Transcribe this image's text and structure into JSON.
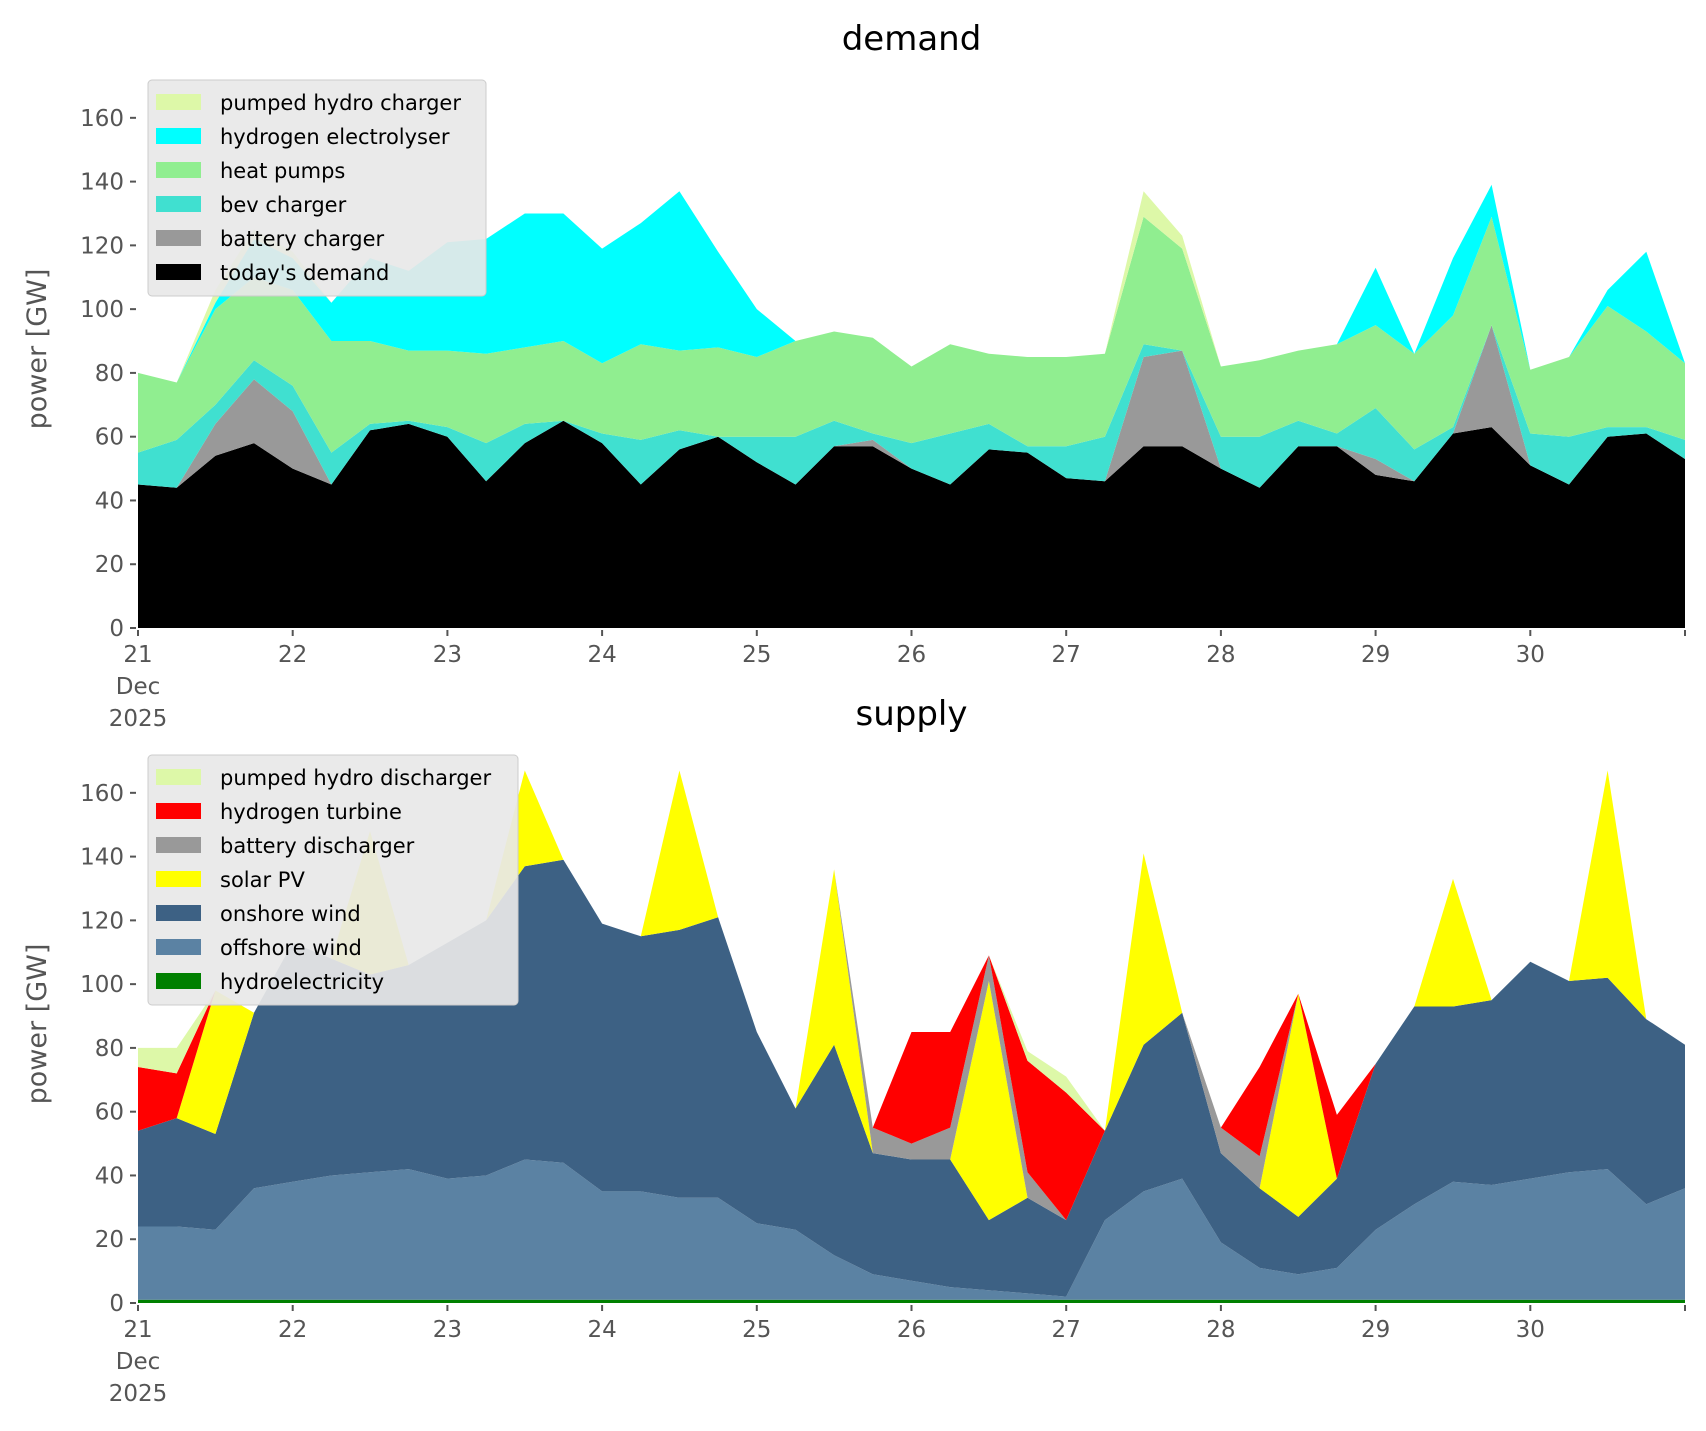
{
  "chart_data": [
    {
      "type": "area",
      "stacked": true,
      "title": "demand",
      "xlabel": "",
      "ylabel": "power [GW]",
      "ylim": [
        0,
        175
      ],
      "yticks": [
        0,
        20,
        40,
        60,
        80,
        100,
        120,
        140,
        160
      ],
      "xlim_days": [
        0,
        10
      ],
      "x_start": "2025-12-21",
      "x_step_hours": 6,
      "xticks": [
        {
          "day": 0,
          "lines": [
            "21",
            "Dec",
            "2025"
          ]
        },
        {
          "day": 1,
          "lines": [
            "22"
          ]
        },
        {
          "day": 2,
          "lines": [
            "23"
          ]
        },
        {
          "day": 3,
          "lines": [
            "24"
          ]
        },
        {
          "day": 4,
          "lines": [
            "25"
          ]
        },
        {
          "day": 5,
          "lines": [
            "26"
          ]
        },
        {
          "day": 6,
          "lines": [
            "27"
          ]
        },
        {
          "day": 7,
          "lines": [
            "28"
          ]
        },
        {
          "day": 8,
          "lines": [
            "29"
          ]
        },
        {
          "day": 9,
          "lines": [
            "30"
          ]
        }
      ],
      "grid": false,
      "legend_position": "top-left",
      "legend_order": [
        "pumped hydro charger",
        "hydrogen electrolyser",
        "heat pumps",
        "bev charger",
        "battery charger",
        "today's demand"
      ],
      "series": [
        {
          "name": "today's demand",
          "color": "#000000",
          "values": [
            45,
            44,
            54,
            58,
            50,
            45,
            62,
            64,
            60,
            46,
            58,
            65,
            58,
            45,
            56,
            60,
            52,
            45,
            57,
            57,
            50,
            45,
            56,
            55,
            47,
            46,
            57,
            57,
            50,
            44,
            57,
            57,
            48,
            46,
            61,
            63,
            51,
            45,
            60,
            61,
            53
          ]
        },
        {
          "name": "battery charger",
          "color": "#999999",
          "values": [
            0,
            0,
            10,
            20,
            18,
            0,
            0,
            0,
            0,
            0,
            0,
            0,
            0,
            0,
            0,
            0,
            0,
            0,
            0,
            2,
            0,
            0,
            0,
            0,
            0,
            0,
            28,
            30,
            0,
            0,
            0,
            0,
            5,
            0,
            0,
            32,
            0,
            0,
            0,
            0,
            0
          ]
        },
        {
          "name": "bev charger",
          "color": "#40e0d0",
          "values": [
            10,
            15,
            6,
            6,
            8,
            10,
            2,
            1,
            3,
            12,
            6,
            0,
            3,
            14,
            6,
            0,
            8,
            15,
            8,
            2,
            8,
            16,
            8,
            2,
            10,
            14,
            4,
            0,
            10,
            16,
            8,
            4,
            16,
            10,
            2,
            0,
            10,
            15,
            3,
            2,
            6
          ]
        },
        {
          "name": "heat pumps",
          "color": "#90ee90",
          "values": [
            25,
            18,
            30,
            26,
            30,
            35,
            26,
            22,
            24,
            28,
            24,
            25,
            22,
            30,
            25,
            28,
            25,
            30,
            28,
            30,
            24,
            28,
            22,
            28,
            28,
            26,
            40,
            32,
            22,
            24,
            22,
            28,
            26,
            30,
            35,
            34,
            20,
            25,
            38,
            30,
            24
          ]
        },
        {
          "name": "hydrogen electrolyser",
          "color": "#00ffff",
          "values": [
            0,
            0,
            2,
            12,
            10,
            12,
            26,
            25,
            34,
            36,
            42,
            40,
            36,
            38,
            50,
            30,
            15,
            0,
            0,
            0,
            0,
            0,
            0,
            0,
            0,
            0,
            0,
            0,
            0,
            0,
            0,
            0,
            18,
            0,
            18,
            10,
            0,
            0,
            5,
            25,
            0
          ]
        },
        {
          "name": "pumped hydro charger",
          "color": "#ddf8a8",
          "values": [
            0,
            0,
            4,
            3,
            2,
            0,
            0,
            0,
            0,
            0,
            0,
            0,
            0,
            0,
            0,
            0,
            0,
            0,
            0,
            0,
            0,
            0,
            0,
            0,
            0,
            0,
            8,
            4,
            0,
            0,
            0,
            0,
            0,
            0,
            0,
            0,
            0,
            0,
            0,
            0,
            0
          ]
        }
      ]
    },
    {
      "type": "area",
      "stacked": true,
      "title": "supply",
      "xlabel": "",
      "ylabel": "power [GW]",
      "ylim": [
        0,
        175
      ],
      "yticks": [
        0,
        20,
        40,
        60,
        80,
        100,
        120,
        140,
        160
      ],
      "xlim_days": [
        0,
        10
      ],
      "x_start": "2025-12-21",
      "x_step_hours": 6,
      "xticks": [
        {
          "day": 0,
          "lines": [
            "21",
            "Dec",
            "2025"
          ]
        },
        {
          "day": 1,
          "lines": [
            "22"
          ]
        },
        {
          "day": 2,
          "lines": [
            "23"
          ]
        },
        {
          "day": 3,
          "lines": [
            "24"
          ]
        },
        {
          "day": 4,
          "lines": [
            "25"
          ]
        },
        {
          "day": 5,
          "lines": [
            "26"
          ]
        },
        {
          "day": 6,
          "lines": [
            "27"
          ]
        },
        {
          "day": 7,
          "lines": [
            "28"
          ]
        },
        {
          "day": 8,
          "lines": [
            "29"
          ]
        },
        {
          "day": 9,
          "lines": [
            "30"
          ]
        }
      ],
      "grid": false,
      "legend_position": "top-left",
      "legend_order": [
        "pumped hydro discharger",
        "hydrogen turbine",
        "battery discharger",
        "solar PV",
        "onshore wind",
        "offshore wind",
        "hydroelectricity"
      ],
      "series": [
        {
          "name": "hydroelectricity",
          "color": "#008000",
          "values": [
            1,
            1,
            1,
            1,
            1,
            1,
            1,
            1,
            1,
            1,
            1,
            1,
            1,
            1,
            1,
            1,
            1,
            1,
            1,
            1,
            1,
            1,
            1,
            1,
            1,
            1,
            1,
            1,
            1,
            1,
            1,
            1,
            1,
            1,
            1,
            1,
            1,
            1,
            1,
            1,
            1
          ]
        },
        {
          "name": "offshore wind",
          "color": "#5b82a3",
          "values": [
            23,
            23,
            22,
            35,
            37,
            39,
            40,
            41,
            38,
            39,
            44,
            43,
            34,
            34,
            32,
            32,
            24,
            22,
            14,
            8,
            6,
            4,
            3,
            2,
            1,
            25,
            34,
            38,
            18,
            10,
            8,
            10,
            22,
            30,
            37,
            36,
            38,
            40,
            41,
            30,
            35
          ]
        },
        {
          "name": "onshore wind",
          "color": "#3d6184",
          "values": [
            30,
            34,
            30,
            55,
            75,
            68,
            62,
            64,
            74,
            80,
            92,
            95,
            84,
            80,
            84,
            88,
            60,
            38,
            66,
            38,
            38,
            40,
            22,
            30,
            24,
            28,
            46,
            52,
            28,
            25,
            18,
            28,
            52,
            62,
            55,
            58,
            68,
            60,
            60,
            58,
            45
          ]
        },
        {
          "name": "solar PV",
          "color": "#ffff00",
          "values": [
            0,
            0,
            45,
            0,
            0,
            0,
            45,
            0,
            0,
            0,
            30,
            0,
            0,
            0,
            50,
            0,
            0,
            0,
            55,
            0,
            0,
            0,
            75,
            0,
            0,
            0,
            60,
            0,
            0,
            0,
            70,
            0,
            0,
            0,
            40,
            0,
            0,
            0,
            65,
            0,
            0
          ]
        },
        {
          "name": "battery discharger",
          "color": "#999999",
          "values": [
            0,
            0,
            0,
            0,
            0,
            0,
            0,
            0,
            0,
            0,
            0,
            0,
            0,
            0,
            0,
            0,
            0,
            0,
            0,
            8,
            5,
            10,
            8,
            8,
            0,
            0,
            0,
            0,
            8,
            10,
            0,
            0,
            0,
            0,
            0,
            0,
            0,
            0,
            0,
            0,
            0
          ]
        },
        {
          "name": "hydrogen turbine",
          "color": "#ff0000",
          "values": [
            20,
            14,
            0,
            0,
            0,
            0,
            0,
            0,
            0,
            0,
            0,
            0,
            0,
            0,
            0,
            0,
            0,
            0,
            0,
            0,
            35,
            30,
            0,
            35,
            40,
            0,
            0,
            0,
            0,
            28,
            0,
            20,
            0,
            0,
            0,
            0,
            0,
            0,
            0,
            0,
            0
          ]
        },
        {
          "name": "pumped hydro discharger",
          "color": "#ddf8a8",
          "values": [
            6,
            8,
            0,
            0,
            0,
            0,
            0,
            0,
            0,
            0,
            0,
            0,
            0,
            0,
            0,
            0,
            0,
            0,
            0,
            0,
            0,
            0,
            0,
            3,
            5,
            0,
            0,
            0,
            0,
            0,
            0,
            0,
            0,
            0,
            0,
            0,
            0,
            0,
            0,
            0,
            0
          ]
        }
      ]
    }
  ]
}
